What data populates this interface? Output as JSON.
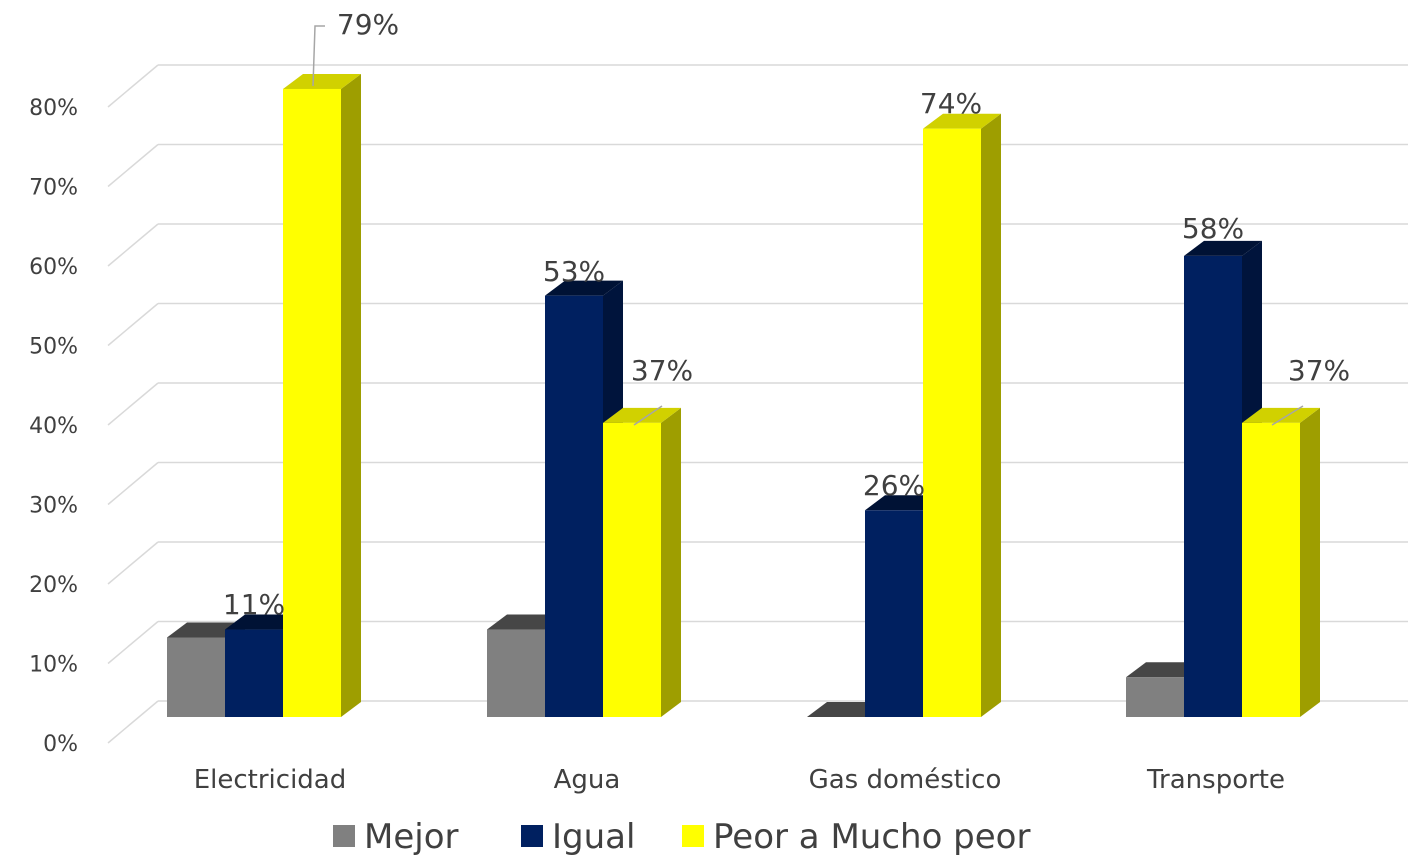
{
  "chart_data": {
    "type": "bar",
    "categories": [
      "Electricidad",
      "Agua",
      "Gas doméstico",
      "Transporte"
    ],
    "series": [
      {
        "name": "Mejor",
        "values": [
          10,
          11,
          0,
          5
        ],
        "color": "#808080"
      },
      {
        "name": "Igual",
        "values": [
          11,
          53,
          26,
          58
        ],
        "color": "#002060"
      },
      {
        "name": "Peor a Mucho peor",
        "values": [
          79,
          37,
          74,
          37
        ],
        "color": "#FFFF00"
      }
    ],
    "data_labels": [
      {
        "series": 1,
        "category": 0,
        "text": "11%"
      },
      {
        "series": 2,
        "category": 0,
        "text": "79%"
      },
      {
        "series": 1,
        "category": 1,
        "text": "53%"
      },
      {
        "series": 2,
        "category": 1,
        "text": "37%"
      },
      {
        "series": 1,
        "category": 2,
        "text": "26%"
      },
      {
        "series": 2,
        "category": 2,
        "text": "74%"
      },
      {
        "series": 1,
        "category": 3,
        "text": "58%"
      },
      {
        "series": 2,
        "category": 3,
        "text": "37%"
      }
    ],
    "yticks": [
      "0%",
      "10%",
      "20%",
      "30%",
      "40%",
      "50%",
      "60%",
      "70%",
      "80%"
    ],
    "ylim": [
      0,
      80
    ],
    "grid": true,
    "legend_position": "bottom",
    "style": "3d-clustered-column"
  }
}
